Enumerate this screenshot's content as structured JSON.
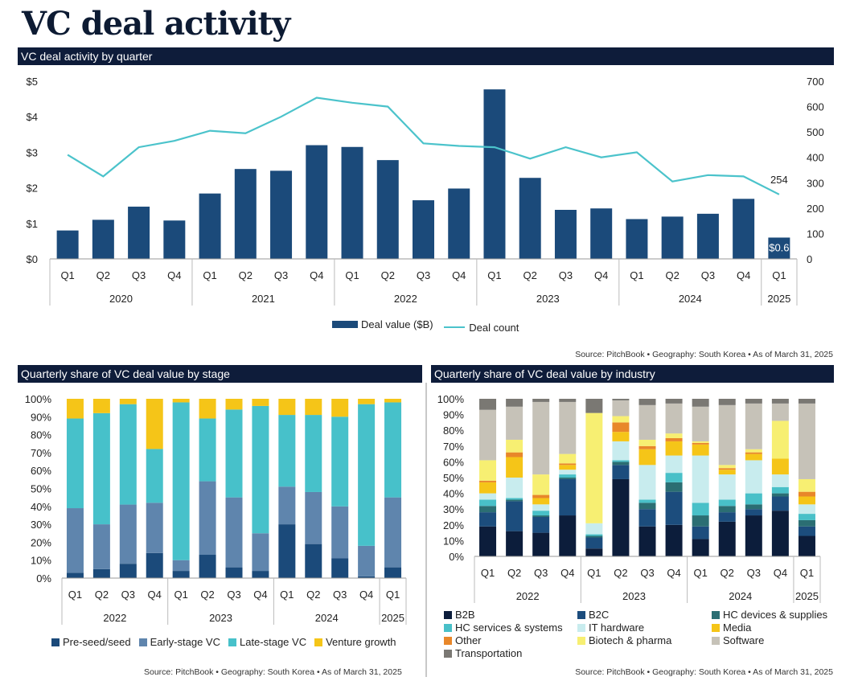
{
  "page": {
    "title": "VC deal activity",
    "section1_title": "VC deal activity by quarter",
    "section2_title": "Quarterly share of VC deal value by stage",
    "section3_title": "Quarterly share of VC deal value by industry",
    "source1": "Source: PitchBook • Geography: South Korea • As of March 31, 2025",
    "source2": "Source: PitchBook • Geography: South Korea • As of March 31, 2025",
    "source3": "Source: PitchBook • Geography: South Korea • As of March 31, 2025"
  },
  "colors": {
    "navy": "#1b4a7a",
    "teal": "#4bc3cb",
    "header": "#0e1c3a"
  },
  "chart_data": [
    {
      "id": "deal-activity",
      "type": "bar",
      "title": "VC deal activity by quarter",
      "categories": [
        "Q1",
        "Q2",
        "Q3",
        "Q4",
        "Q1",
        "Q2",
        "Q3",
        "Q4",
        "Q1",
        "Q2",
        "Q3",
        "Q4",
        "Q1",
        "Q2",
        "Q3",
        "Q4",
        "Q1",
        "Q2",
        "Q3",
        "Q4",
        "Q1"
      ],
      "years": [
        {
          "label": "2020",
          "span": 4
        },
        {
          "label": "2021",
          "span": 4
        },
        {
          "label": "2022",
          "span": 4
        },
        {
          "label": "2023",
          "span": 4
        },
        {
          "label": "2024",
          "span": 4
        },
        {
          "label": "2025",
          "span": 1
        }
      ],
      "series": [
        {
          "name": "Deal value ($B)",
          "kind": "bar",
          "axis": "left",
          "color": "#1b4a7a",
          "values": [
            0.8,
            1.1,
            1.47,
            1.08,
            1.84,
            2.53,
            2.48,
            3.2,
            3.15,
            2.78,
            1.65,
            1.98,
            4.77,
            2.28,
            1.38,
            1.42,
            1.12,
            1.19,
            1.27,
            1.69,
            0.6
          ]
        },
        {
          "name": "Deal count",
          "kind": "line",
          "axis": "right",
          "color": "#4bc3cb",
          "values": [
            410,
            325,
            440,
            465,
            505,
            495,
            560,
            635,
            615,
            600,
            455,
            445,
            440,
            395,
            440,
            400,
            420,
            305,
            330,
            325,
            254
          ]
        }
      ],
      "ylim_left": [
        0,
        5
      ],
      "left_ticks": [
        "$0",
        "$1",
        "$2",
        "$3",
        "$4",
        "$5"
      ],
      "ylim_right": [
        0,
        700
      ],
      "right_ticks": [
        "0",
        "100",
        "200",
        "300",
        "400",
        "500",
        "600",
        "700"
      ],
      "annotations": [
        {
          "text": "$0.6",
          "index": 20,
          "series": "Deal value ($B)"
        },
        {
          "text": "254",
          "index": 20,
          "series": "Deal count"
        }
      ],
      "legend": [
        "Deal value ($B)",
        "Deal count"
      ],
      "legend_position": "bottom"
    },
    {
      "id": "share-by-stage",
      "type": "bar",
      "stacked": true,
      "title": "Quarterly share of VC deal value by stage",
      "categories": [
        "Q1",
        "Q2",
        "Q3",
        "Q4",
        "Q1",
        "Q2",
        "Q3",
        "Q4",
        "Q1",
        "Q2",
        "Q3",
        "Q4",
        "Q1"
      ],
      "years": [
        {
          "label": "2022",
          "span": 4
        },
        {
          "label": "2023",
          "span": 4
        },
        {
          "label": "2024",
          "span": 4
        },
        {
          "label": "2025",
          "span": 1
        }
      ],
      "y_ticks": [
        "0%",
        "10%",
        "20%",
        "30%",
        "40%",
        "50%",
        "60%",
        "70%",
        "80%",
        "90%",
        "100%"
      ],
      "series": [
        {
          "name": "Pre-seed/seed",
          "color": "#1b4a7a",
          "values": [
            3,
            5,
            8,
            14,
            4,
            13,
            6,
            4,
            30,
            19,
            11,
            1,
            6
          ]
        },
        {
          "name": "Early-stage VC",
          "color": "#5f85ad",
          "values": [
            36,
            25,
            33,
            28,
            6,
            41,
            39,
            21,
            21,
            29,
            29,
            17,
            39
          ]
        },
        {
          "name": "Late-stage VC",
          "color": "#47c1ca",
          "values": [
            50,
            62,
            56,
            30,
            88,
            35,
            49,
            71,
            40,
            43,
            50,
            79,
            53
          ]
        },
        {
          "name": "Venture growth",
          "color": "#f5c518",
          "values": [
            11,
            8,
            3,
            28,
            2,
            11,
            6,
            4,
            9,
            9,
            10,
            3,
            2
          ]
        }
      ],
      "legend_position": "bottom"
    },
    {
      "id": "share-by-industry",
      "type": "bar",
      "stacked": true,
      "title": "Quarterly share of VC deal value by industry",
      "categories": [
        "Q1",
        "Q2",
        "Q3",
        "Q4",
        "Q1",
        "Q2",
        "Q3",
        "Q4",
        "Q1",
        "Q2",
        "Q3",
        "Q4",
        "Q1"
      ],
      "years": [
        {
          "label": "2022",
          "span": 4
        },
        {
          "label": "2023",
          "span": 4
        },
        {
          "label": "2024",
          "span": 4
        },
        {
          "label": "2025",
          "span": 1
        }
      ],
      "y_ticks": [
        "0%",
        "10%",
        "20%",
        "30%",
        "40%",
        "50%",
        "60%",
        "70%",
        "80%",
        "90%",
        "100%"
      ],
      "series": [
        {
          "name": "B2B",
          "color": "#0c1d3b",
          "values": [
            19,
            16,
            15,
            26,
            5,
            49,
            19,
            20,
            11,
            22,
            26,
            29,
            13
          ]
        },
        {
          "name": "B2C",
          "color": "#1c4d7d",
          "values": [
            9,
            19,
            10,
            23,
            7,
            9,
            11,
            21,
            8,
            6,
            4,
            9,
            6
          ]
        },
        {
          "name": "HC devices & supplies",
          "color": "#2b6e73",
          "values": [
            4,
            1,
            1,
            1,
            1,
            2,
            4,
            6,
            7,
            4,
            3,
            2,
            4
          ]
        },
        {
          "name": "HC services & systems",
          "color": "#49c0c8",
          "values": [
            4,
            1,
            3,
            2,
            1,
            1,
            2,
            6,
            8,
            4,
            7,
            4,
            4
          ]
        },
        {
          "name": "IT hardware",
          "color": "#c8ecee",
          "values": [
            4,
            13,
            4,
            3,
            7,
            12,
            22,
            11,
            30,
            16,
            21,
            8,
            6
          ]
        },
        {
          "name": "Media",
          "color": "#f5c518",
          "values": [
            7,
            13,
            4,
            3,
            0,
            6,
            10,
            9,
            7,
            3,
            4,
            10,
            5
          ]
        },
        {
          "name": "Other",
          "color": "#e8872a",
          "values": [
            1,
            3,
            2,
            1,
            0,
            6,
            2,
            2,
            1,
            1,
            1,
            0,
            3
          ]
        },
        {
          "name": "Biotech & pharma",
          "color": "#f7ef72",
          "values": [
            13,
            8,
            13,
            6,
            70,
            4,
            4,
            3,
            1,
            2,
            2,
            24,
            8
          ]
        },
        {
          "name": "Software",
          "color": "#c6c2b8",
          "values": [
            32,
            21,
            46,
            33,
            0,
            10,
            22,
            19,
            22,
            38,
            29,
            11,
            48
          ]
        },
        {
          "name": "Transportation",
          "color": "#7a7873",
          "values": [
            7,
            5,
            2,
            2,
            9,
            1,
            4,
            3,
            5,
            4,
            3,
            3,
            3
          ]
        }
      ],
      "legend_position": "bottom"
    }
  ]
}
